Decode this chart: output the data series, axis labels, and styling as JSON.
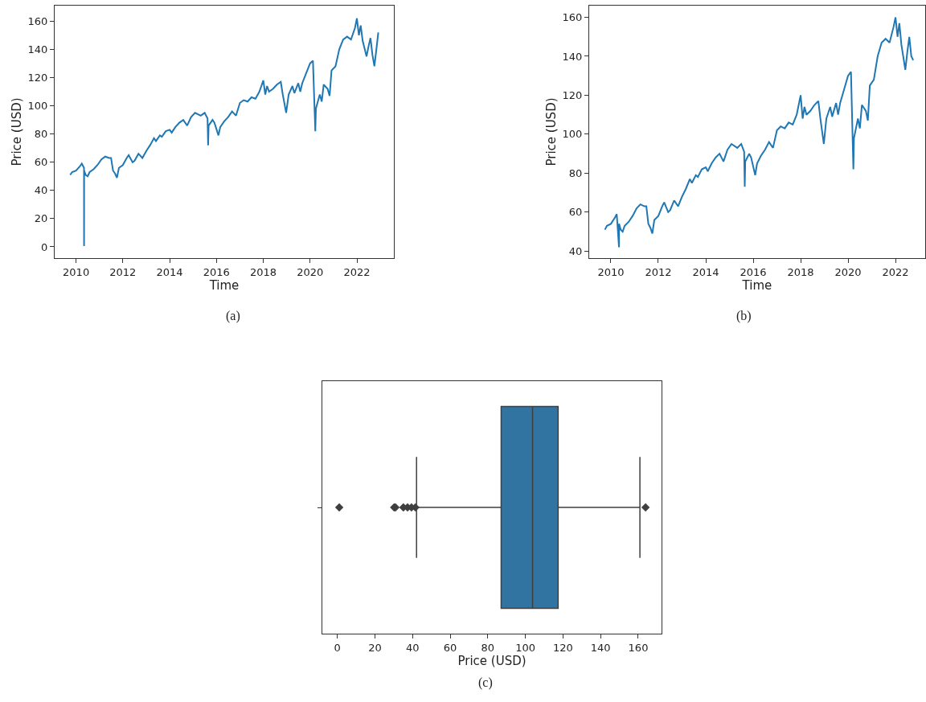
{
  "chart_data": [
    {
      "type": "line",
      "xlabel": "Time",
      "ylabel": "Price (USD)",
      "annotations": [
        "(a)"
      ],
      "marker": "none",
      "line_style": "solid",
      "xlim": [
        "2009-02",
        "2023-08"
      ],
      "ylim": [
        -8,
        171
      ],
      "xticks": [
        "2010",
        "2012",
        "2014",
        "2016",
        "2018",
        "2020",
        "2022"
      ],
      "yticks": [
        0,
        20,
        40,
        60,
        80,
        100,
        120,
        140,
        160
      ],
      "x": [
        "2009-10",
        "2009-11",
        "2010-01",
        "2010-03",
        "2010-04",
        "2010-05-05",
        "2010-05-06",
        "2010-05-07",
        "2010-06",
        "2010-07",
        "2010-08",
        "2010-10",
        "2010-12",
        "2011-02",
        "2011-04",
        "2011-06",
        "2011-07",
        "2011-08",
        "2011-09",
        "2011-10",
        "2011-11",
        "2012-01",
        "2012-03",
        "2012-04",
        "2012-06",
        "2012-07",
        "2012-09",
        "2012-11",
        "2013-01",
        "2013-03",
        "2013-05",
        "2013-06",
        "2013-08",
        "2013-09",
        "2013-11",
        "2014-01",
        "2014-02",
        "2014-04",
        "2014-06",
        "2014-08",
        "2014-10",
        "2014-12",
        "2015-02",
        "2015-05",
        "2015-07",
        "2015-08-15",
        "2015-08-24",
        "2015-09",
        "2015-11",
        "2015-12",
        "2016-02",
        "2016-03",
        "2016-05",
        "2016-07",
        "2016-09",
        "2016-11",
        "2017-01",
        "2017-03",
        "2017-05",
        "2017-07",
        "2017-09",
        "2017-11",
        "2018-01",
        "2018-02",
        "2018-03",
        "2018-04",
        "2018-06",
        "2018-08",
        "2018-10",
        "2018-11",
        "2018-12-24",
        "2019-02",
        "2019-04",
        "2019-05",
        "2019-07",
        "2019-08",
        "2019-09",
        "2019-11",
        "2020-01",
        "2020-02-15",
        "2020-03-23",
        "2020-04",
        "2020-06",
        "2020-07",
        "2020-08",
        "2020-10",
        "2020-11",
        "2020-12",
        "2021-02",
        "2021-04",
        "2021-06",
        "2021-08",
        "2021-10",
        "2021-12",
        "2022-01",
        "2022-02",
        "2022-03",
        "2022-04",
        "2022-06",
        "2022-07",
        "2022-08",
        "2022-09",
        "2022-10",
        "2022-11",
        "2022-12"
      ],
      "series": [
        {
          "color": "#1f77b4",
          "values": [
            51,
            53,
            54,
            57,
            59,
            56,
            0.5,
            54,
            51,
            50,
            53,
            55,
            58,
            62,
            64,
            63,
            63,
            54,
            52,
            49,
            56,
            58,
            63,
            65,
            60,
            61,
            66,
            63,
            68,
            72,
            77,
            75,
            79,
            78,
            82,
            83,
            81,
            85,
            88,
            90,
            86,
            92,
            95,
            93,
            95,
            91,
            72,
            86,
            90,
            88,
            79,
            85,
            89,
            92,
            96,
            93,
            102,
            104,
            103,
            106,
            105,
            110,
            118,
            108,
            114,
            110,
            112,
            115,
            117,
            108,
            95,
            108,
            114,
            109,
            116,
            110,
            116,
            123,
            130,
            132,
            82,
            98,
            108,
            103,
            115,
            112,
            107,
            125,
            128,
            140,
            147,
            149,
            147,
            155,
            162,
            150,
            157,
            146,
            135,
            142,
            148,
            136,
            128,
            140,
            152
          ]
        }
      ]
    },
    {
      "type": "line",
      "xlabel": "Time",
      "ylabel": "Price (USD)",
      "annotations": [
        "(b)"
      ],
      "marker": "none",
      "line_style": "solid",
      "xlim": [
        "2009-02",
        "2023-04"
      ],
      "ylim": [
        36.4,
        166
      ],
      "xticks": [
        "2010",
        "2012",
        "2014",
        "2016",
        "2018",
        "2020",
        "2022"
      ],
      "yticks": [
        40,
        60,
        80,
        100,
        120,
        140,
        160
      ],
      "x": [
        "2009-10",
        "2009-11",
        "2010-01",
        "2010-03",
        "2010-04",
        "2010-05-06",
        "2010-05-07",
        "2010-06",
        "2010-07",
        "2010-08",
        "2010-10",
        "2010-12",
        "2011-02",
        "2011-04",
        "2011-06",
        "2011-07",
        "2011-08",
        "2011-09",
        "2011-10",
        "2011-11",
        "2012-01",
        "2012-03",
        "2012-04",
        "2012-06",
        "2012-07",
        "2012-09",
        "2012-11",
        "2013-01",
        "2013-03",
        "2013-05",
        "2013-06",
        "2013-08",
        "2013-09",
        "2013-11",
        "2014-01",
        "2014-02",
        "2014-04",
        "2014-06",
        "2014-08",
        "2014-10",
        "2014-12",
        "2015-02",
        "2015-05",
        "2015-07",
        "2015-08-15",
        "2015-08-24",
        "2015-09",
        "2015-11",
        "2015-12",
        "2016-02",
        "2016-03",
        "2016-05",
        "2016-07",
        "2016-09",
        "2016-11",
        "2017-01",
        "2017-03",
        "2017-05",
        "2017-07",
        "2017-09",
        "2017-11",
        "2018-01",
        "2018-02",
        "2018-03",
        "2018-04",
        "2018-06",
        "2018-08",
        "2018-10",
        "2018-11",
        "2018-12-24",
        "2019-02",
        "2019-04",
        "2019-05",
        "2019-07",
        "2019-08",
        "2019-09",
        "2019-11",
        "2020-01",
        "2020-02-15",
        "2020-03-23",
        "2020-04",
        "2020-06",
        "2020-07",
        "2020-08",
        "2020-10",
        "2020-11",
        "2020-12",
        "2021-02",
        "2021-04",
        "2021-06",
        "2021-08",
        "2021-10",
        "2021-12",
        "2022-01",
        "2022-02",
        "2022-03",
        "2022-04",
        "2022-06",
        "2022-07",
        "2022-08",
        "2022-09",
        "2022-10"
      ],
      "series": [
        {
          "color": "#1f77b4",
          "values": [
            51,
            53,
            54,
            57,
            59,
            42,
            54,
            51,
            50,
            53,
            55,
            58,
            62,
            64,
            63,
            63,
            54,
            52,
            49,
            56,
            58,
            63,
            65,
            60,
            61,
            66,
            63,
            68,
            72,
            77,
            75,
            79,
            78,
            82,
            83,
            81,
            85,
            88,
            90,
            86,
            92,
            95,
            93,
            95,
            91,
            73,
            86,
            90,
            88,
            79,
            85,
            89,
            92,
            96,
            93,
            102,
            104,
            103,
            106,
            105,
            110,
            120,
            108,
            114,
            110,
            112,
            115,
            117,
            108,
            95,
            108,
            114,
            109,
            116,
            110,
            116,
            123,
            130,
            132,
            82,
            98,
            108,
            103,
            115,
            112,
            107,
            125,
            128,
            140,
            147,
            149,
            147,
            155,
            160,
            150,
            157,
            146,
            133,
            142,
            150,
            140,
            138
          ]
        }
      ]
    },
    {
      "type": "box",
      "orientation": "horizontal",
      "xlabel": "Price (USD)",
      "annotations": [
        "(c)"
      ],
      "marker": "diamond",
      "xlim": [
        -8,
        172.4
      ],
      "xticks": [
        0,
        20,
        40,
        60,
        80,
        100,
        120,
        140,
        160
      ],
      "categories": [
        null
      ],
      "color": "#3274a1",
      "boxes": [
        {
          "low": 42.1,
          "q1": 87.1,
          "median": 103.8,
          "q3": 117.4,
          "high": 160.9,
          "outliers": [
            1.0,
            30.2,
            30.9,
            35.1,
            37.3,
            39.4,
            41.5,
            163.9
          ]
        }
      ]
    }
  ]
}
